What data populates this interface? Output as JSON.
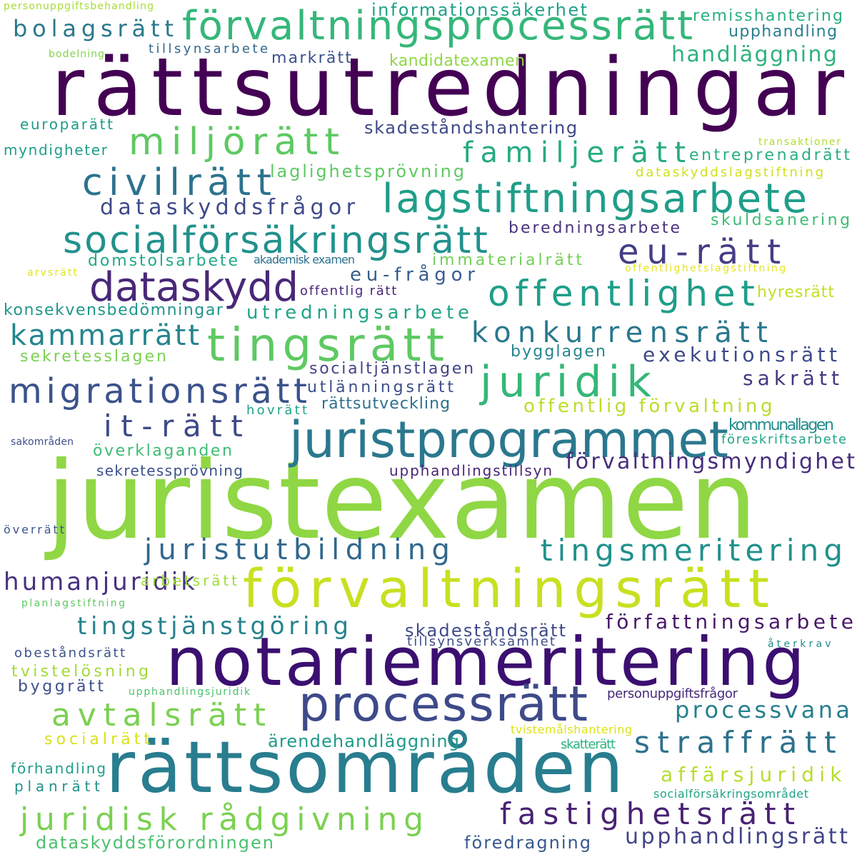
{
  "words": [
    {
      "text": "juristexamen",
      "color": "#8fd744"
    },
    {
      "text": "rättsutredningar",
      "color": "#440154"
    },
    {
      "text": "notariemeritering",
      "color": "#3b0f70"
    },
    {
      "text": "rättsområden",
      "color": "#287d8e"
    },
    {
      "text": "förvaltningsrätt",
      "color": "#c8e020"
    },
    {
      "text": "förvaltningsprocessrätt",
      "color": "#35b779"
    },
    {
      "text": "juristprogrammet",
      "color": "#2a788e"
    },
    {
      "text": "processrätt",
      "color": "#3e4a89"
    },
    {
      "text": "tingsrätt",
      "color": "#5ec962"
    },
    {
      "text": "lagstiftningsarbete",
      "color": "#1f9e89"
    },
    {
      "text": "socialförsäkringsrätt",
      "color": "#21918c"
    },
    {
      "text": "dataskydd",
      "color": "#482878"
    },
    {
      "text": "offentlighet",
      "color": "#1f9e89"
    },
    {
      "text": "juridik",
      "color": "#35b779"
    },
    {
      "text": "migrationsrätt",
      "color": "#3b528b"
    },
    {
      "text": "miljörätt",
      "color": "#5ec962"
    },
    {
      "text": "civilrätt",
      "color": "#2c728e"
    },
    {
      "text": "eu-rätt",
      "color": "#433e85"
    },
    {
      "text": "juridisk rådgivning",
      "color": "#7ad151"
    },
    {
      "text": "avtalsrätt",
      "color": "#7ad151"
    },
    {
      "text": "tingsmeritering",
      "color": "#21918c"
    },
    {
      "text": "juristutbildning",
      "color": "#31688e"
    },
    {
      "text": "fastighetsrätt",
      "color": "#482173"
    },
    {
      "text": "straffrätt",
      "color": "#2c728e"
    },
    {
      "text": "familjerätt",
      "color": "#25ab82"
    },
    {
      "text": "konkurrensrätt",
      "color": "#2a788e"
    },
    {
      "text": "kammarrätt",
      "color": "#25858e"
    },
    {
      "text": "it-rätt",
      "color": "#3e4a89"
    },
    {
      "text": "tingstjänstgöring",
      "color": "#26828e"
    },
    {
      "text": "bolagsrätt",
      "color": "#2a788e"
    },
    {
      "text": "humanjuridik",
      "color": "#46327e"
    },
    {
      "text": "upphandlingsrätt",
      "color": "#414487"
    },
    {
      "text": "dataskyddsfrågor",
      "color": "#3e4a89"
    },
    {
      "text": "processvana",
      "color": "#277f8e"
    },
    {
      "text": "förvaltningsmyndighet",
      "color": "#472d7b"
    },
    {
      "text": "handläggning",
      "color": "#2db27d"
    },
    {
      "text": "författningsarbete",
      "color": "#481769"
    },
    {
      "text": "affärsjuridik",
      "color": "#b5de2b"
    },
    {
      "text": "exekutionsrätt",
      "color": "#3e4989"
    },
    {
      "text": "sakrätt",
      "color": "#453781"
    },
    {
      "text": "utredningsarbete",
      "color": "#20a486"
    },
    {
      "text": "eu-frågor",
      "color": "#365d8d"
    },
    {
      "text": "offentlig förvaltning",
      "color": "#b8de29"
    },
    {
      "text": "informationssäkerhet",
      "color": "#1fa188"
    },
    {
      "text": "skadeståndshantering",
      "color": "#3e4989"
    },
    {
      "text": "laglighetsprövning",
      "color": "#5ec962"
    },
    {
      "text": "ärendehandläggning",
      "color": "#1f9a8a"
    },
    {
      "text": "dataskyddsförordningen",
      "color": "#4ac16d"
    },
    {
      "text": "föredragning",
      "color": "#38598c"
    },
    {
      "text": "skadeståndsrätt",
      "color": "#3e4a89"
    },
    {
      "text": "domstolsarbete",
      "color": "#22a884"
    },
    {
      "text": "beredningsarbete",
      "color": "#46337e"
    },
    {
      "text": "immaterialrätt",
      "color": "#73d056"
    },
    {
      "text": "konsekvensbedömningar",
      "color": "#1f968b"
    },
    {
      "text": "sekretesslagen",
      "color": "#7ad151"
    },
    {
      "text": "socialtjänstlagen",
      "color": "#414487"
    },
    {
      "text": "utlänningsrätt",
      "color": "#3c4f8a"
    },
    {
      "text": "rättsutveckling",
      "color": "#2d718e"
    },
    {
      "text": "överklaganden",
      "color": "#3dbc74"
    },
    {
      "text": "sekretessprövning",
      "color": "#3c508b"
    },
    {
      "text": "upphandlingstillsyn",
      "color": "#482576"
    },
    {
      "text": "kommunallagen",
      "color": "#228d8d"
    },
    {
      "text": "bygglagen",
      "color": "#25848e"
    },
    {
      "text": "remisshantering",
      "color": "#29af7f"
    },
    {
      "text": "upphandling",
      "color": "#277f8e"
    },
    {
      "text": "entreprenadrätt",
      "color": "#29af7f"
    },
    {
      "text": "skuldsanering",
      "color": "#3dbc74"
    },
    {
      "text": "hyresrätt",
      "color": "#c2df23"
    },
    {
      "text": "markrätt",
      "color": "#3b528b"
    },
    {
      "text": "kandidatexamen",
      "color": "#8fd744"
    },
    {
      "text": "tillsynsarbete",
      "color": "#31688e"
    },
    {
      "text": "europarätt",
      "color": "#1e9b8a"
    },
    {
      "text": "myndigheter",
      "color": "#1f9e89"
    },
    {
      "text": "offentlig rätt",
      "color": "#482878"
    },
    {
      "text": "akademisk examen",
      "color": "#2d708e"
    },
    {
      "text": "arbetsrätt",
      "color": "#9fda3a"
    },
    {
      "text": "socialrätt",
      "color": "#d8e219"
    },
    {
      "text": "tvistelösning",
      "color": "#a2da37"
    },
    {
      "text": "byggrätt",
      "color": "#3b528b"
    },
    {
      "text": "obeståndsrätt",
      "color": "#3b528b"
    },
    {
      "text": "tillsynsverksamhet",
      "color": "#3d4d8a"
    },
    {
      "text": "förhandling",
      "color": "#1f9e89"
    },
    {
      "text": "planrätt",
      "color": "#21918c"
    },
    {
      "text": "hovrätt",
      "color": "#20a386"
    },
    {
      "text": "föreskriftsarbete",
      "color": "#21a685"
    },
    {
      "text": "dataskyddslagstiftning",
      "color": "#d0e11c"
    },
    {
      "text": "personuppgiftsfrågor",
      "color": "#472a7a"
    },
    {
      "text": "skatterätt",
      "color": "#2db27d"
    },
    {
      "text": "tvistemålshantering",
      "color": "#dde318"
    },
    {
      "text": "socialförsäkringsområdet",
      "color": "#20a486"
    },
    {
      "text": "upphandlingsjuridik",
      "color": "#4ac16d"
    },
    {
      "text": "återkrav",
      "color": "#228c8d"
    },
    {
      "text": "planlagstiftning",
      "color": "#5ec962"
    },
    {
      "text": "överrätt",
      "color": "#39568c"
    },
    {
      "text": "sakområden",
      "color": "#3d4e8a"
    },
    {
      "text": "arvsrätt",
      "color": "#e2e418"
    },
    {
      "text": "offentlighetslagstiftning",
      "color": "#e5e419"
    },
    {
      "text": "transaktioner",
      "color": "#b0dd2f"
    },
    {
      "text": "bodelning",
      "color": "#84d44b"
    },
    {
      "text": "personuppgiftsbehandling",
      "color": "#a8db34"
    }
  ]
}
